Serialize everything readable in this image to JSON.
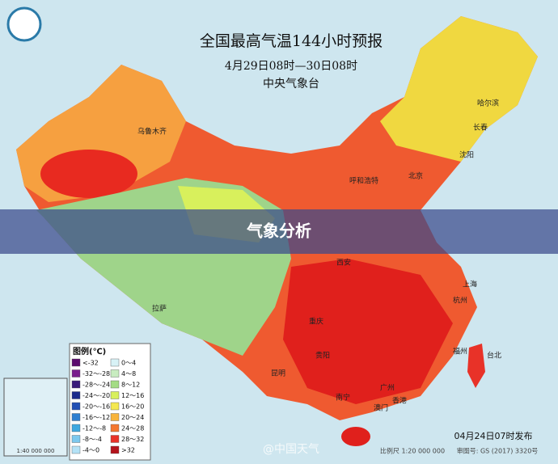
{
  "header": {
    "title": "全国最高气温144小时预报",
    "subtitle": "4月29日08时—30日08时",
    "agency": "中央气象台"
  },
  "banner": "气象分析",
  "cities": [
    "乌鲁木齐",
    "哈尔滨",
    "长春",
    "沈阳",
    "呼和浩特",
    "北京",
    "西安",
    "拉萨",
    "重庆",
    "贵阳",
    "昆明",
    "南宁",
    "广州",
    "香港",
    "澳门",
    "上海",
    "杭州",
    "福州",
    "台北"
  ],
  "legend": {
    "title": "图例(℃)",
    "items": [
      {
        "label": "<-32",
        "color": "#5a0a6e"
      },
      {
        "label": "-32～-28",
        "color": "#7a1c8c"
      },
      {
        "label": "-28～-24",
        "color": "#3a1a7a"
      },
      {
        "label": "-24～-20",
        "color": "#1c2a8c"
      },
      {
        "label": "-20～-16",
        "color": "#2350b4"
      },
      {
        "label": "-16～-12",
        "color": "#2f7fd0"
      },
      {
        "label": "-12～-8",
        "color": "#3fa8e0"
      },
      {
        "label": "-8～-4",
        "color": "#7cc8ee"
      },
      {
        "label": "-4～0",
        "color": "#b4e2f6"
      },
      {
        "label": "0～4",
        "color": "#d8f2f6"
      },
      {
        "label": "4～8",
        "color": "#c8ecc0"
      },
      {
        "label": "8～12",
        "color": "#a4dc84"
      },
      {
        "label": "12～16",
        "color": "#d8f05c"
      },
      {
        "label": "16～20",
        "color": "#f4e850"
      },
      {
        "label": "20～24",
        "color": "#f8b43c"
      },
      {
        "label": "24～28",
        "color": "#f47830"
      },
      {
        "label": "28～32",
        "color": "#e83228"
      },
      {
        "label": ">32",
        "color": "#b4141c"
      }
    ]
  },
  "footer": {
    "issued": "04月24日07时发布",
    "scale": "比例尺 1:20 000 000",
    "approval": "审图号: GS (2017) 3320号",
    "watermark": "@中国天气",
    "inset_scale": "1:40 000 000"
  }
}
